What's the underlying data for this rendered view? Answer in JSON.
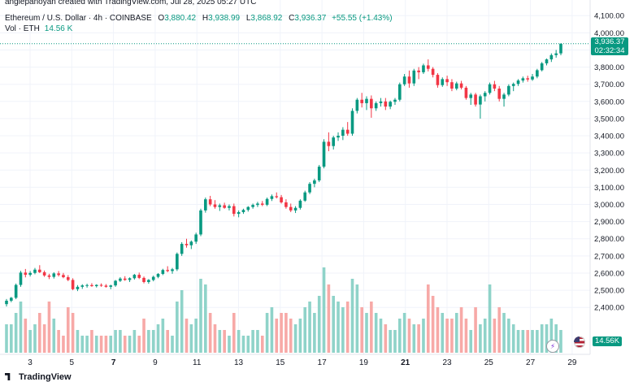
{
  "header": {
    "credit": "anglepanoyan created with TradingView.com, Jul 28, 2025 05:27 UTC",
    "symbol_title": "Ethereum / U.S. Dollar · 4h · COINBASE",
    "open_label": "O",
    "open_value": "3,880.42",
    "high_label": "H",
    "high_value": "3,938.99",
    "low_label": "L",
    "low_value": "3,868.92",
    "close_label": "C",
    "close_value": "3,936.37",
    "change": "+55.55 (+1.43%)",
    "volume_label": "Vol · ETH",
    "volume_value": "14.56 K"
  },
  "badges": {
    "price": "3,936.37",
    "countdown": "02:32:34",
    "volume": "14.56K"
  },
  "icons": {
    "flag": "us-flag-icon",
    "flash": "flash-icon",
    "logo": "tradingview-logo-icon"
  },
  "footer": {
    "logo_text": "TradingView"
  },
  "colors": {
    "up": "#089981",
    "down": "#f23645",
    "vol_up": "#8fd3c9",
    "vol_down": "#f7a9a7",
    "grid": "#f0f3fa"
  },
  "chart_data": {
    "type": "candlestick",
    "price_axis": {
      "ticks": [
        2400,
        2500,
        2600,
        2700,
        2800,
        2900,
        3000,
        3100,
        3200,
        3300,
        3400,
        3500,
        3600,
        3700,
        3800,
        3900,
        4000,
        4100
      ],
      "labels": [
        "2,400.00",
        "2,500.00",
        "2,600.00",
        "2,700.00",
        "2,800.00",
        "2,900.00",
        "3,000.00",
        "3,100.00",
        "3,200.00",
        "3,300.00",
        "3,400.00",
        "3,500.00",
        "3,600.00",
        "3,700.00",
        "3,800.00",
        "3,900.00",
        "4,000.00",
        "4,100.00"
      ],
      "range": [
        2330,
        4120
      ]
    },
    "time_axis": {
      "labels": [
        "3",
        "5",
        "7",
        "9",
        "11",
        "13",
        "15",
        "17",
        "19",
        "21",
        "23",
        "25",
        "27",
        "29"
      ],
      "bold": [
        "7",
        "21"
      ],
      "unit": "July 2025 (day of month)"
    },
    "last_price": 3936.37,
    "candles": [
      [
        2419,
        2449,
        2405,
        2439,
        5
      ],
      [
        2439,
        2461,
        2430,
        2456,
        5
      ],
      [
        2456,
        2539,
        2448,
        2531,
        7
      ],
      [
        2531,
        2613,
        2520,
        2603,
        9
      ],
      [
        2603,
        2624,
        2575,
        2590,
        6
      ],
      [
        2590,
        2612,
        2580,
        2601,
        4
      ],
      [
        2601,
        2630,
        2593,
        2620,
        5
      ],
      [
        2620,
        2646,
        2600,
        2605,
        7
      ],
      [
        2605,
        2615,
        2578,
        2586,
        5
      ],
      [
        2586,
        2596,
        2565,
        2578,
        9
      ],
      [
        2578,
        2605,
        2568,
        2598,
        6
      ],
      [
        2598,
        2612,
        2580,
        2589,
        4
      ],
      [
        2589,
        2601,
        2570,
        2576,
        3
      ],
      [
        2576,
        2588,
        2553,
        2560,
        8
      ],
      [
        2560,
        2570,
        2500,
        2506,
        7
      ],
      [
        2506,
        2530,
        2495,
        2520,
        4
      ],
      [
        2520,
        2535,
        2508,
        2528,
        3
      ],
      [
        2528,
        2538,
        2515,
        2530,
        3
      ],
      [
        2530,
        2541,
        2520,
        2524,
        4
      ],
      [
        2524,
        2535,
        2516,
        2531,
        3
      ],
      [
        2531,
        2540,
        2520,
        2527,
        3
      ],
      [
        2527,
        2536,
        2515,
        2520,
        3
      ],
      [
        2520,
        2532,
        2506,
        2528,
        3
      ],
      [
        2528,
        2560,
        2520,
        2555,
        4
      ],
      [
        2555,
        2576,
        2548,
        2568,
        4
      ],
      [
        2568,
        2582,
        2555,
        2560,
        3
      ],
      [
        2560,
        2575,
        2548,
        2570,
        3
      ],
      [
        2570,
        2595,
        2562,
        2590,
        4
      ],
      [
        2590,
        2603,
        2565,
        2572,
        3
      ],
      [
        2572,
        2580,
        2540,
        2548,
        6
      ],
      [
        2548,
        2565,
        2538,
        2560,
        4
      ],
      [
        2560,
        2585,
        2552,
        2578,
        4
      ],
      [
        2578,
        2600,
        2570,
        2595,
        5
      ],
      [
        2595,
        2625,
        2588,
        2618,
        6
      ],
      [
        2618,
        2640,
        2605,
        2612,
        4
      ],
      [
        2612,
        2630,
        2596,
        2622,
        3
      ],
      [
        2622,
        2720,
        2612,
        2712,
        9
      ],
      [
        2712,
        2780,
        2700,
        2770,
        11
      ],
      [
        2770,
        2800,
        2748,
        2762,
        6
      ],
      [
        2762,
        2790,
        2740,
        2783,
        5
      ],
      [
        2783,
        2835,
        2770,
        2825,
        6
      ],
      [
        2825,
        2975,
        2815,
        2965,
        13
      ],
      [
        2965,
        3040,
        2952,
        3030,
        12
      ],
      [
        3030,
        3050,
        2990,
        3000,
        7
      ],
      [
        3000,
        3025,
        2975,
        2985,
        5
      ],
      [
        2985,
        3005,
        2962,
        2995,
        4
      ],
      [
        2995,
        3010,
        2975,
        2980,
        4
      ],
      [
        2980,
        3000,
        2965,
        2990,
        3
      ],
      [
        2990,
        3005,
        2930,
        2945,
        7
      ],
      [
        2945,
        2965,
        2925,
        2955,
        4
      ],
      [
        2955,
        2975,
        2945,
        2968,
        3
      ],
      [
        2968,
        2990,
        2958,
        2985,
        3
      ],
      [
        2985,
        3005,
        2975,
        2997,
        4
      ],
      [
        2997,
        3015,
        2985,
        3005,
        4
      ],
      [
        3005,
        3020,
        2990,
        2998,
        3
      ],
      [
        2998,
        3040,
        2990,
        3032,
        7
      ],
      [
        3032,
        3058,
        3020,
        3048,
        8
      ],
      [
        3048,
        3070,
        3035,
        3042,
        6
      ],
      [
        3042,
        3055,
        3005,
        3012,
        7
      ],
      [
        3012,
        3030,
        2975,
        2985,
        7
      ],
      [
        2985,
        3005,
        2955,
        2965,
        6
      ],
      [
        2965,
        2990,
        2950,
        2980,
        5
      ],
      [
        2980,
        3030,
        2970,
        3022,
        6
      ],
      [
        3022,
        3080,
        3015,
        3070,
        8
      ],
      [
        3070,
        3130,
        3060,
        3120,
        9
      ],
      [
        3120,
        3150,
        3100,
        3140,
        7
      ],
      [
        3140,
        3230,
        3130,
        3220,
        10
      ],
      [
        3220,
        3380,
        3210,
        3365,
        15
      ],
      [
        3365,
        3420,
        3310,
        3340,
        12
      ],
      [
        3340,
        3400,
        3320,
        3390,
        10
      ],
      [
        3390,
        3420,
        3370,
        3400,
        9
      ],
      [
        3400,
        3450,
        3375,
        3435,
        8
      ],
      [
        3435,
        3480,
        3400,
        3412,
        9
      ],
      [
        3412,
        3560,
        3400,
        3545,
        13
      ],
      [
        3545,
        3620,
        3530,
        3610,
        12
      ],
      [
        3610,
        3650,
        3565,
        3590,
        8
      ],
      [
        3590,
        3630,
        3550,
        3615,
        7
      ],
      [
        3615,
        3635,
        3505,
        3560,
        9
      ],
      [
        3560,
        3600,
        3545,
        3590,
        7
      ],
      [
        3590,
        3620,
        3570,
        3600,
        6
      ],
      [
        3600,
        3620,
        3550,
        3570,
        5
      ],
      [
        3570,
        3605,
        3555,
        3598,
        4
      ],
      [
        3598,
        3620,
        3580,
        3610,
        4
      ],
      [
        3610,
        3710,
        3600,
        3700,
        6
      ],
      [
        3700,
        3760,
        3690,
        3745,
        7
      ],
      [
        3745,
        3780,
        3680,
        3705,
        6
      ],
      [
        3705,
        3790,
        3690,
        3780,
        5
      ],
      [
        3780,
        3800,
        3730,
        3770,
        5
      ],
      [
        3770,
        3820,
        3760,
        3810,
        6
      ],
      [
        3810,
        3845,
        3775,
        3790,
        12
      ],
      [
        3790,
        3800,
        3740,
        3755,
        10
      ],
      [
        3755,
        3765,
        3680,
        3695,
        8
      ],
      [
        3695,
        3740,
        3685,
        3730,
        7
      ],
      [
        3730,
        3750,
        3690,
        3712,
        6
      ],
      [
        3712,
        3730,
        3660,
        3675,
        6
      ],
      [
        3675,
        3715,
        3665,
        3705,
        7
      ],
      [
        3705,
        3720,
        3670,
        3680,
        8
      ],
      [
        3680,
        3690,
        3610,
        3620,
        6
      ],
      [
        3620,
        3650,
        3580,
        3640,
        4
      ],
      [
        3640,
        3650,
        3570,
        3582,
        8
      ],
      [
        3582,
        3640,
        3500,
        3630,
        5
      ],
      [
        3630,
        3660,
        3600,
        3650,
        6
      ],
      [
        3650,
        3710,
        3640,
        3700,
        12
      ],
      [
        3700,
        3720,
        3660,
        3675,
        6
      ],
      [
        3675,
        3690,
        3600,
        3615,
        8
      ],
      [
        3615,
        3650,
        3570,
        3640,
        7
      ],
      [
        3640,
        3700,
        3630,
        3690,
        6
      ],
      [
        3690,
        3710,
        3660,
        3702,
        5
      ],
      [
        3702,
        3730,
        3690,
        3722,
        4
      ],
      [
        3722,
        3745,
        3710,
        3735,
        4
      ],
      [
        3735,
        3750,
        3715,
        3728,
        4
      ],
      [
        3728,
        3760,
        3720,
        3745,
        4
      ],
      [
        3745,
        3790,
        3735,
        3782,
        4
      ],
      [
        3782,
        3830,
        3775,
        3822,
        5
      ],
      [
        3822,
        3850,
        3810,
        3845,
        5
      ],
      [
        3845,
        3880,
        3830,
        3870,
        6
      ],
      [
        3870,
        3900,
        3855,
        3880,
        5
      ],
      [
        3880,
        3939,
        3869,
        3936,
        4
      ]
    ]
  }
}
